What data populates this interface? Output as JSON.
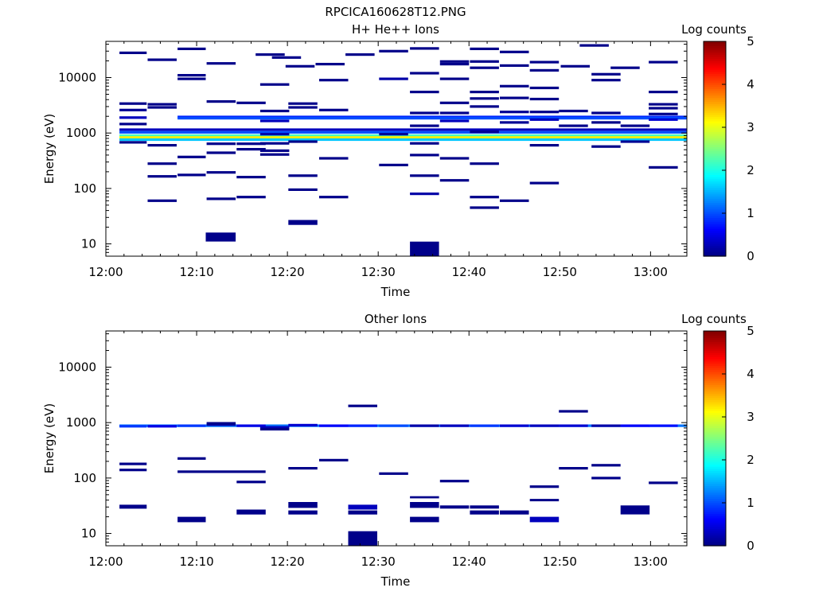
{
  "figure_title": "RPCICA160628T12.PNG",
  "chart_data": [
    {
      "type": "heatmap",
      "title": "H+ He++ Ions",
      "xlabel": "Time",
      "ylabel": "Energy (eV)",
      "x_ticks": [
        "12:00",
        "12:10",
        "12:20",
        "12:30",
        "12:40",
        "12:50",
        "13:00"
      ],
      "y_ticks": [
        "10",
        "100",
        "1000",
        "10000"
      ],
      "y_scale": "log",
      "ylim": [
        6,
        45000
      ],
      "xlim_minutes": [
        0,
        64
      ],
      "colorbar": {
        "label": "Log counts",
        "range": [
          0,
          5
        ],
        "ticks": [
          "0",
          "1",
          "2",
          "3",
          "4",
          "5"
        ]
      },
      "cells": [
        [
          1.5,
          4.5,
          28000,
          0.05
        ],
        [
          4.6,
          7.8,
          21000,
          0.05
        ],
        [
          7.9,
          11,
          33000,
          0.05
        ],
        [
          11.1,
          14.3,
          18000,
          0.05
        ],
        [
          16.5,
          19.7,
          26000,
          0.05
        ],
        [
          18.3,
          21.5,
          23000,
          0.05
        ],
        [
          19.8,
          23,
          16000,
          0.05
        ],
        [
          23.1,
          26.3,
          17500,
          0.05
        ],
        [
          26.4,
          29.6,
          26000,
          0.05
        ],
        [
          30.1,
          33.3,
          30000,
          0.05
        ],
        [
          33.5,
          36.7,
          33500,
          0.05
        ],
        [
          36.8,
          40,
          17500,
          0.05
        ],
        [
          40.1,
          43.3,
          33000,
          0.05
        ],
        [
          43.4,
          46.6,
          29000,
          0.05
        ],
        [
          46.7,
          49.9,
          19000,
          0.05
        ],
        [
          50.1,
          53.3,
          16000,
          0.05
        ],
        [
          52.2,
          55.4,
          38000,
          0.05
        ],
        [
          55.6,
          58.8,
          15000,
          0.05
        ],
        [
          59.8,
          63,
          19000,
          0.05
        ],
        [
          7.9,
          11,
          11000,
          0.05
        ],
        [
          7.9,
          11,
          9500,
          0.05
        ],
        [
          17,
          20.2,
          7500,
          0.05
        ],
        [
          23.5,
          26.7,
          9000,
          0.05
        ],
        [
          30.1,
          33.3,
          9500,
          0.2
        ],
        [
          33.5,
          36.7,
          5500,
          0.05
        ],
        [
          36.8,
          40,
          9500,
          0.05
        ],
        [
          40.1,
          43.3,
          5500,
          0.05
        ],
        [
          43.4,
          46.6,
          7000,
          0.05
        ],
        [
          46.7,
          49.9,
          6500,
          0.05
        ],
        [
          46.7,
          49.9,
          13500,
          0.05
        ],
        [
          53.5,
          56.7,
          9000,
          0.05
        ],
        [
          59.8,
          63,
          5500,
          0.05
        ],
        [
          33.5,
          36.7,
          12000,
          0.05
        ],
        [
          40.1,
          43.3,
          15000,
          0.05
        ],
        [
          40.1,
          43.3,
          19500,
          0.05
        ],
        [
          43.4,
          46.6,
          16500,
          0.05
        ],
        [
          36.8,
          40,
          19500,
          0.05
        ],
        [
          53.5,
          56.7,
          11500,
          0.05
        ],
        [
          1.5,
          4.5,
          3400,
          0.05
        ],
        [
          1.5,
          4.5,
          2600,
          0.1
        ],
        [
          1.5,
          4.5,
          1900,
          0.3
        ],
        [
          1.5,
          4.5,
          1450,
          0.05
        ],
        [
          4.6,
          7.8,
          3300,
          0.05
        ],
        [
          4.6,
          7.8,
          2900,
          0.05
        ],
        [
          11.1,
          14.3,
          3700,
          0.05
        ],
        [
          14.4,
          17.6,
          3500,
          0.05
        ],
        [
          17,
          20.2,
          2500,
          0.05
        ],
        [
          20.1,
          23.3,
          3400,
          0.05
        ],
        [
          20.1,
          23.3,
          2900,
          0.05
        ],
        [
          23.5,
          26.7,
          2600,
          0.05
        ],
        [
          33.5,
          36.7,
          2300,
          0.05
        ],
        [
          36.8,
          40,
          3500,
          0.05
        ],
        [
          36.8,
          40,
          2300,
          0.05
        ],
        [
          40.1,
          43.3,
          4200,
          0.05
        ],
        [
          40.1,
          43.3,
          3000,
          0.05
        ],
        [
          43.4,
          46.6,
          4300,
          0.05
        ],
        [
          43.4,
          46.6,
          2400,
          0.1
        ],
        [
          46.7,
          49.9,
          4100,
          0.05
        ],
        [
          46.7,
          49.9,
          2400,
          0.05
        ],
        [
          49.9,
          53.1,
          2500,
          0.05
        ],
        [
          53.5,
          56.7,
          2300,
          0.05
        ],
        [
          59.8,
          63,
          3300,
          0.05
        ],
        [
          59.8,
          63,
          2800,
          0.05
        ],
        [
          59.8,
          63,
          2200,
          0.05
        ],
        [
          7.9,
          64,
          1950,
          0.8
        ],
        [
          7.9,
          64,
          1850,
          1.0
        ],
        [
          17,
          20.2,
          1650,
          0.3
        ],
        [
          33.5,
          36.7,
          1350,
          0.05
        ],
        [
          36.8,
          40,
          1650,
          0.3
        ],
        [
          43.4,
          46.6,
          1550,
          0.1
        ],
        [
          46.7,
          49.9,
          1750,
          0.3
        ],
        [
          49.9,
          53.1,
          1350,
          0.05
        ],
        [
          53.5,
          56.7,
          1550,
          0.05
        ],
        [
          56.7,
          59.9,
          1350,
          0.05
        ],
        [
          59.8,
          63,
          1750,
          0.4
        ],
        [
          1.5,
          64,
          1150,
          0.3
        ],
        [
          1.5,
          64,
          1030,
          1.0
        ],
        [
          1.5,
          64,
          900,
          2.2
        ],
        [
          1.5,
          64,
          830,
          3.2
        ],
        [
          1.5,
          64,
          760,
          1.6
        ],
        [
          17,
          20.2,
          950,
          0.2
        ],
        [
          30.1,
          33.3,
          950,
          0.1
        ],
        [
          40.1,
          43.3,
          1050,
          0.1
        ],
        [
          1.5,
          4.5,
          680,
          0.05
        ],
        [
          4.6,
          7.8,
          600,
          0.05
        ],
        [
          11.1,
          14.3,
          640,
          0.05
        ],
        [
          14.4,
          17.6,
          640,
          0.05
        ],
        [
          17,
          20.2,
          650,
          0.05
        ],
        [
          20.1,
          23.3,
          700,
          0.05
        ],
        [
          33.5,
          36.7,
          650,
          0.05
        ],
        [
          46.7,
          49.9,
          600,
          0.05
        ],
        [
          53.5,
          56.7,
          570,
          0.05
        ],
        [
          56.7,
          59.9,
          700,
          0.1
        ],
        [
          4.6,
          7.8,
          280,
          0.05
        ],
        [
          4.6,
          7.8,
          165,
          0.05
        ],
        [
          7.9,
          11,
          370,
          0.05
        ],
        [
          7.9,
          11,
          175,
          0.05
        ],
        [
          11.1,
          14.3,
          440,
          0.05
        ],
        [
          11.1,
          14.3,
          195,
          0.05
        ],
        [
          14.4,
          17.6,
          510,
          0.05
        ],
        [
          14.4,
          17.6,
          160,
          0.05
        ],
        [
          17,
          20.2,
          480,
          0.05
        ],
        [
          17,
          20.2,
          410,
          0.05
        ],
        [
          20.1,
          23.3,
          170,
          0.05
        ],
        [
          20.1,
          23.3,
          95,
          0.05
        ],
        [
          23.5,
          26.7,
          350,
          0.05
        ],
        [
          30.1,
          33.3,
          265,
          0.05
        ],
        [
          33.5,
          36.7,
          400,
          0.05
        ],
        [
          33.5,
          36.7,
          170,
          0.05
        ],
        [
          33.5,
          36.7,
          80,
          0.2
        ],
        [
          36.8,
          40,
          350,
          0.05
        ],
        [
          36.8,
          40,
          140,
          0.05
        ],
        [
          40.1,
          43.3,
          280,
          0.05
        ],
        [
          40.1,
          43.3,
          70,
          0.05
        ],
        [
          40.1,
          43.3,
          45,
          0.05
        ],
        [
          43.4,
          46.6,
          60,
          0.05
        ],
        [
          46.7,
          49.9,
          125,
          0.05
        ],
        [
          59.8,
          63,
          240,
          0.05
        ],
        [
          4.6,
          7.8,
          60,
          0.05
        ],
        [
          11.1,
          14.3,
          65,
          0.05
        ],
        [
          14.4,
          17.6,
          70,
          0.05
        ],
        [
          23.5,
          26.7,
          70,
          0.05
        ],
        [
          11,
          14.3,
          13,
          0.05,
          11,
          16
        ],
        [
          20.1,
          23.3,
          24,
          0.05,
          22,
          27
        ],
        [
          33.5,
          36.7,
          8,
          0.05,
          6,
          11
        ]
      ]
    },
    {
      "type": "heatmap",
      "title": "Other Ions",
      "xlabel": "Time",
      "ylabel": "Energy (eV)",
      "x_ticks": [
        "12:00",
        "12:10",
        "12:20",
        "12:30",
        "12:40",
        "12:50",
        "13:00"
      ],
      "y_ticks": [
        "10",
        "100",
        "1000",
        "10000"
      ],
      "y_scale": "log",
      "ylim": [
        6,
        45000
      ],
      "xlim_minutes": [
        0,
        64
      ],
      "colorbar": {
        "label": "Log counts",
        "range": [
          0,
          5
        ],
        "ticks": [
          "0",
          "1",
          "2",
          "3",
          "4",
          "5"
        ]
      },
      "cells": [
        [
          1.5,
          64,
          880,
          1.2
        ],
        [
          1.5,
          4.5,
          860,
          0.9
        ],
        [
          4.6,
          7.8,
          860,
          0.5
        ],
        [
          7.9,
          11,
          880,
          0.9
        ],
        [
          11.1,
          14.3,
          920,
          0.2
        ],
        [
          14.4,
          17.6,
          880,
          0.5
        ],
        [
          17,
          20.2,
          820,
          0.3
        ],
        [
          20.1,
          23.3,
          900,
          0.4
        ],
        [
          23.5,
          26.7,
          880,
          0.6
        ],
        [
          26.7,
          29.9,
          880,
          0.8
        ],
        [
          30.1,
          33.3,
          880,
          1.0
        ],
        [
          33.5,
          36.7,
          880,
          0.2
        ],
        [
          36.8,
          40,
          880,
          0.3
        ],
        [
          40.1,
          43.3,
          880,
          0.9
        ],
        [
          43.4,
          46.6,
          880,
          0.4
        ],
        [
          46.7,
          49.9,
          880,
          0.3
        ],
        [
          49.9,
          53.1,
          880,
          0.4
        ],
        [
          53.5,
          56.7,
          880,
          0.2
        ],
        [
          56.7,
          59.9,
          880,
          0.6
        ],
        [
          59.8,
          63,
          880,
          0.7
        ],
        [
          11.1,
          14.3,
          970,
          0.05
        ],
        [
          17,
          20.2,
          760,
          0.05
        ],
        [
          26.7,
          29.9,
          2000,
          0.05
        ],
        [
          49.9,
          53.1,
          1600,
          0.05
        ],
        [
          1.5,
          4.5,
          180,
          0.05
        ],
        [
          1.5,
          4.5,
          140,
          0.05
        ],
        [
          7.9,
          11,
          225,
          0.05
        ],
        [
          7.9,
          17.6,
          130,
          0.05
        ],
        [
          14.4,
          17.6,
          85,
          0.05
        ],
        [
          20.1,
          23.3,
          150,
          0.05
        ],
        [
          23.5,
          26.7,
          210,
          0.05
        ],
        [
          30.1,
          33.3,
          120,
          0.05
        ],
        [
          36.8,
          40,
          88,
          0.05
        ],
        [
          46.7,
          49.9,
          70,
          0.05
        ],
        [
          49.9,
          53.1,
          150,
          0.05
        ],
        [
          53.5,
          56.7,
          170,
          0.05
        ],
        [
          53.5,
          56.7,
          100,
          0.05
        ],
        [
          59.8,
          63,
          82,
          0.05
        ],
        [
          1.5,
          4.5,
          30,
          0.05,
          28,
          33
        ],
        [
          7.9,
          11,
          18,
          0.05,
          16,
          20
        ],
        [
          14.4,
          17.6,
          24,
          0.05,
          22,
          27
        ],
        [
          20.1,
          23.3,
          24,
          0.05,
          22,
          26
        ],
        [
          20.1,
          23.3,
          33,
          0.05,
          29,
          37
        ],
        [
          26.7,
          29.9,
          24,
          0.05,
          22,
          26
        ],
        [
          26.7,
          29.9,
          30,
          0.3,
          27,
          33
        ],
        [
          26.7,
          29.9,
          8,
          0.05,
          6,
          11
        ],
        [
          33.5,
          36.7,
          33,
          0.05,
          29,
          37
        ],
        [
          33.5,
          36.7,
          18,
          0.05,
          16,
          20
        ],
        [
          33.5,
          36.7,
          45,
          0.05,
          43,
          47
        ],
        [
          36.8,
          40,
          30,
          0.05,
          28,
          32
        ],
        [
          40.1,
          43.3,
          30,
          0.05,
          28,
          32
        ],
        [
          40.1,
          43.3,
          24,
          0.05,
          22,
          26
        ],
        [
          43.4,
          46.6,
          24,
          0.05,
          22,
          26
        ],
        [
          46.7,
          49.9,
          18,
          0.3,
          16,
          20
        ],
        [
          46.7,
          49.9,
          40,
          0.05,
          38,
          42
        ],
        [
          56.7,
          59.9,
          27,
          0.05,
          22,
          32
        ]
      ]
    }
  ]
}
